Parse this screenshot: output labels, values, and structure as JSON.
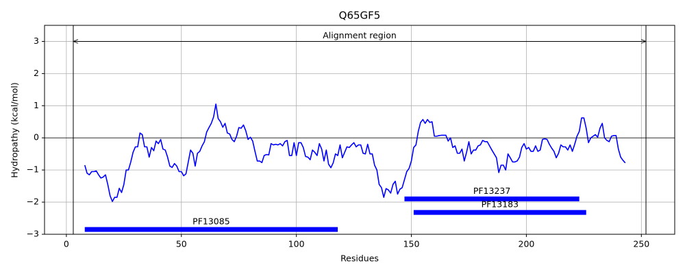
{
  "chart_data": {
    "type": "line",
    "title": "Q65GF5",
    "x_label": "Residues",
    "y_label": "Hydropathy (kcal/mol)",
    "x": [
      8,
      9,
      10,
      11,
      12,
      13,
      14,
      15,
      16,
      17,
      18,
      19,
      20,
      21,
      22,
      23,
      24,
      25,
      26,
      27,
      28,
      29,
      30,
      31,
      32,
      33,
      34,
      35,
      36,
      37,
      38,
      39,
      40,
      41,
      42,
      43,
      44,
      45,
      46,
      47,
      48,
      49,
      50,
      51,
      52,
      53,
      54,
      55,
      56,
      57,
      58,
      59,
      60,
      61,
      62,
      63,
      64,
      65,
      66,
      67,
      68,
      69,
      70,
      71,
      72,
      73,
      74,
      75,
      76,
      77,
      78,
      79,
      80,
      81,
      82,
      83,
      84,
      85,
      86,
      87,
      88,
      89,
      90,
      91,
      92,
      93,
      94,
      95,
      96,
      97,
      98,
      99,
      100,
      101,
      102,
      103,
      104,
      105,
      106,
      107,
      108,
      109,
      110,
      111,
      112,
      113,
      114,
      115,
      116,
      117,
      118,
      119,
      120,
      121,
      122,
      123,
      124,
      125,
      126,
      127,
      128,
      129,
      130,
      131,
      132,
      133,
      134,
      135,
      136,
      137,
      138,
      139,
      140,
      141,
      142,
      143,
      144,
      145,
      146,
      147,
      148,
      149,
      150,
      151,
      152,
      153,
      154,
      155,
      156,
      157,
      158,
      159,
      160,
      161,
      162,
      163,
      164,
      165,
      166,
      167,
      168,
      169,
      170,
      171,
      172,
      173,
      174,
      175,
      176,
      177,
      178,
      179,
      180,
      181,
      182,
      183,
      184,
      185,
      186,
      187,
      188,
      189,
      190,
      191,
      192,
      193,
      194,
      195,
      196,
      197,
      198,
      199,
      200,
      201,
      202,
      203,
      204,
      205,
      206,
      207,
      208,
      209,
      210,
      211,
      212,
      213,
      214,
      215,
      216,
      217,
      218,
      219,
      220,
      221,
      222,
      223,
      224,
      225,
      226,
      227,
      228,
      229,
      230,
      231,
      232,
      233,
      234,
      235,
      236,
      237,
      238,
      239,
      240,
      241,
      242,
      243
    ],
    "values": [
      -0.85,
      -1.1,
      -1.15,
      -1.05,
      -1.05,
      -1.03,
      -1.15,
      -1.25,
      -1.22,
      -1.15,
      -1.45,
      -1.8,
      -1.98,
      -1.85,
      -1.85,
      -1.57,
      -1.7,
      -1.45,
      -1.0,
      -1.0,
      -0.75,
      -0.45,
      -0.28,
      -0.28,
      0.15,
      0.1,
      -0.28,
      -0.28,
      -0.6,
      -0.3,
      -0.4,
      -0.1,
      -0.18,
      -0.05,
      -0.35,
      -0.38,
      -0.6,
      -0.88,
      -0.92,
      -0.8,
      -0.88,
      -1.05,
      -1.05,
      -1.18,
      -1.12,
      -0.75,
      -0.38,
      -0.48,
      -0.88,
      -0.48,
      -0.42,
      -0.25,
      -0.12,
      0.18,
      0.32,
      0.45,
      0.65,
      1.05,
      0.6,
      0.5,
      0.33,
      0.45,
      0.15,
      0.12,
      -0.05,
      -0.12,
      0.05,
      0.32,
      0.3,
      0.4,
      0.22,
      -0.05,
      0.02,
      -0.1,
      -0.42,
      -0.72,
      -0.72,
      -0.77,
      -0.55,
      -0.52,
      -0.53,
      -0.18,
      -0.22,
      -0.2,
      -0.22,
      -0.18,
      -0.25,
      -0.12,
      -0.08,
      -0.55,
      -0.55,
      -0.15,
      -0.55,
      -0.15,
      -0.15,
      -0.3,
      -0.58,
      -0.6,
      -0.68,
      -0.38,
      -0.45,
      -0.55,
      -0.18,
      -0.35,
      -0.72,
      -0.38,
      -0.82,
      -0.93,
      -0.78,
      -0.5,
      -0.55,
      -0.22,
      -0.62,
      -0.45,
      -0.28,
      -0.3,
      -0.22,
      -0.15,
      -0.28,
      -0.22,
      -0.22,
      -0.48,
      -0.5,
      -0.2,
      -0.5,
      -0.5,
      -0.85,
      -1.0,
      -1.45,
      -1.55,
      -1.85,
      -1.58,
      -1.62,
      -1.72,
      -1.45,
      -1.35,
      -1.75,
      -1.6,
      -1.55,
      -1.3,
      -1.05,
      -0.95,
      -0.72,
      -0.3,
      -0.22,
      0.2,
      0.48,
      0.57,
      0.45,
      0.57,
      0.48,
      0.5,
      0.05,
      0.05,
      0.07,
      0.08,
      0.08,
      0.08,
      -0.1,
      0.0,
      -0.3,
      -0.25,
      -0.48,
      -0.48,
      -0.35,
      -0.72,
      -0.45,
      -0.12,
      -0.5,
      -0.38,
      -0.38,
      -0.25,
      -0.22,
      -0.08,
      -0.12,
      -0.12,
      -0.25,
      -0.38,
      -0.5,
      -0.62,
      -1.08,
      -0.85,
      -0.85,
      -1.0,
      -0.5,
      -0.62,
      -0.75,
      -0.75,
      -0.72,
      -0.6,
      -0.3,
      -0.18,
      -0.35,
      -0.3,
      -0.42,
      -0.42,
      -0.25,
      -0.42,
      -0.38,
      -0.05,
      -0.03,
      -0.05,
      -0.2,
      -0.32,
      -0.42,
      -0.62,
      -0.48,
      -0.22,
      -0.28,
      -0.28,
      -0.38,
      -0.22,
      -0.42,
      -0.2,
      0.05,
      0.2,
      0.62,
      0.62,
      0.3,
      -0.15,
      0.0,
      0.05,
      0.1,
      0.02,
      0.3,
      0.45,
      0.0,
      -0.08,
      -0.12,
      0.05,
      0.07,
      0.07,
      -0.35,
      -0.6,
      -0.7,
      -0.78
    ],
    "color": "#0000ff",
    "domains": [
      {
        "name": "PF13085",
        "start": 8,
        "end": 118,
        "y": -2.85,
        "color": "#0000ff"
      },
      {
        "name": "PF13237",
        "start": 147,
        "end": 223,
        "y": -1.9,
        "color": "#0000ff"
      },
      {
        "name": "PF13183",
        "start": 151,
        "end": 226,
        "y": -2.32,
        "color": "#0000ff"
      }
    ],
    "annotation": {
      "text": "Alignment region",
      "start": 3,
      "end": 252,
      "y": 3
    },
    "hlines": [
      0
    ],
    "xlim": [
      -9.5,
      264.5
    ],
    "ylim": [
      -3,
      3.5
    ],
    "xticks": [
      0,
      50,
      100,
      150,
      200,
      250
    ],
    "yticks": [
      {
        "value": -3,
        "label": "−3"
      },
      {
        "value": -2,
        "label": "−2"
      },
      {
        "value": -1,
        "label": "−1"
      },
      0,
      1,
      2,
      3
    ],
    "grid": true
  }
}
